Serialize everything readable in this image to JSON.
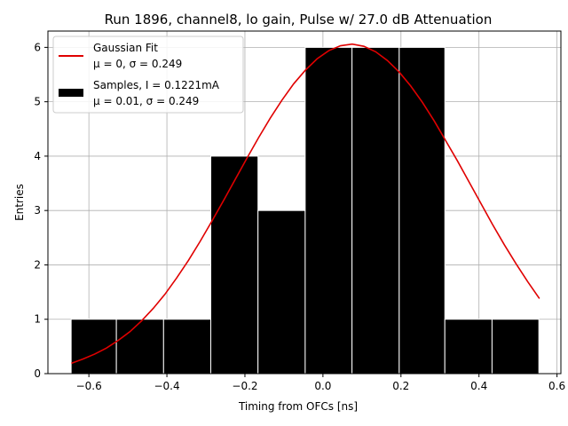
{
  "chart_data": {
    "type": "bar",
    "title": "Run 1896, channel8, lo gain, Pulse w/ 27.0 dB Attenuation",
    "xlabel": "Timing from OFCs [ns]",
    "ylabel": "Entries",
    "xlim": [
      -0.705,
      0.61
    ],
    "ylim": [
      0,
      6.3
    ],
    "xticks": [
      -0.6,
      -0.4,
      -0.2,
      0.0,
      0.2,
      0.4,
      0.6
    ],
    "xtick_labels": [
      "−0.6",
      "−0.4",
      "−0.2",
      "0.0",
      "0.2",
      "0.4",
      "0.6"
    ],
    "yticks": [
      0,
      1,
      2,
      3,
      4,
      5,
      6
    ],
    "ytick_labels": [
      "0",
      "1",
      "2",
      "3",
      "4",
      "5",
      "6"
    ],
    "grid": true,
    "legend_position": "top-left",
    "histogram": {
      "name": "Samples, I = 0.1221mA",
      "name_line2": "μ = 0.01, σ = 0.249",
      "color": "#000000",
      "edgecolor": "#ffffff",
      "bin_edges": [
        -0.6455,
        -0.5295,
        -0.4085,
        -0.2875,
        -0.1665,
        -0.0455,
        0.0745,
        0.1955,
        0.3125,
        0.4335,
        0.5535
      ],
      "counts": [
        1,
        1,
        1,
        4,
        3,
        6,
        6,
        6,
        1,
        1
      ]
    },
    "fit": {
      "name": "Gaussian Fit",
      "name_line2": "μ = 0, σ = 0.249",
      "color": "#e00000",
      "x": [
        -0.645,
        -0.615,
        -0.585,
        -0.555,
        -0.525,
        -0.495,
        -0.465,
        -0.435,
        -0.405,
        -0.375,
        -0.345,
        -0.315,
        -0.285,
        -0.255,
        -0.225,
        -0.195,
        -0.165,
        -0.135,
        -0.105,
        -0.075,
        -0.045,
        -0.015,
        0.015,
        0.045,
        0.075,
        0.105,
        0.135,
        0.165,
        0.195,
        0.225,
        0.255,
        0.285,
        0.315,
        0.345,
        0.375,
        0.405,
        0.435,
        0.465,
        0.495,
        0.525,
        0.555
      ],
      "y": [
        0.19,
        0.27,
        0.36,
        0.47,
        0.61,
        0.77,
        0.97,
        1.2,
        1.46,
        1.76,
        2.08,
        2.43,
        2.8,
        3.18,
        3.57,
        3.96,
        4.34,
        4.7,
        5.03,
        5.33,
        5.58,
        5.79,
        5.94,
        6.03,
        6.06,
        6.02,
        5.92,
        5.76,
        5.55,
        5.29,
        4.99,
        4.65,
        4.28,
        3.91,
        3.52,
        3.13,
        2.74,
        2.37,
        2.02,
        1.69,
        1.38
      ]
    }
  }
}
